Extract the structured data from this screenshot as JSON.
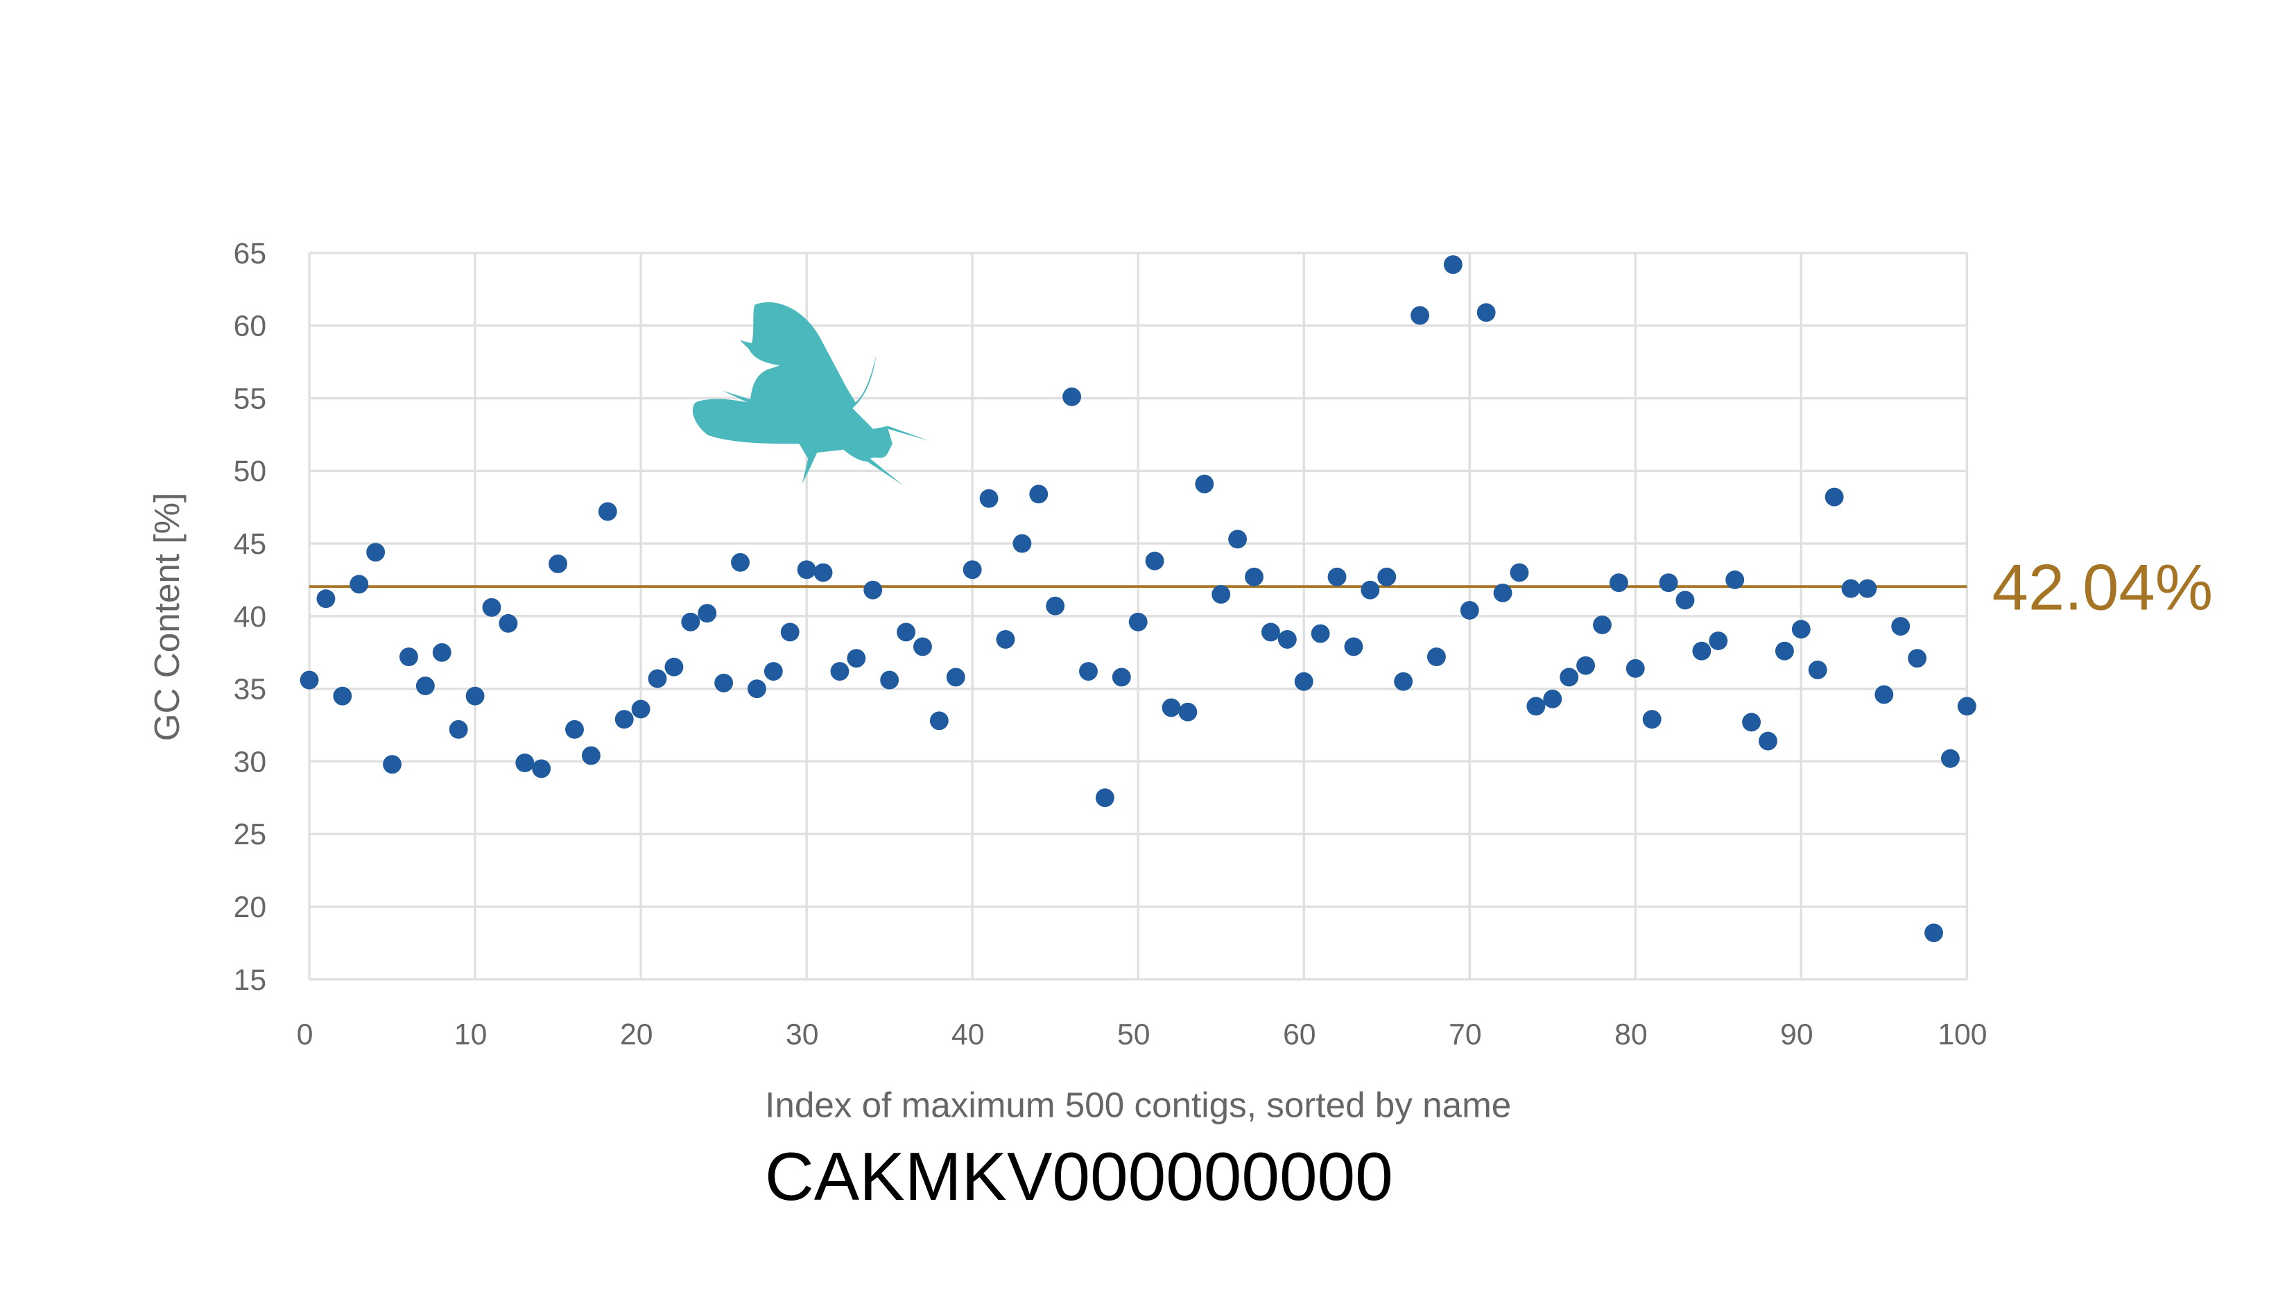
{
  "chart_data": {
    "type": "scatter",
    "title": "CAKMKV000000000",
    "xlabel": "Index of maximum 500 contigs, sorted by name",
    "ylabel": "GC Content [%]",
    "xlim": [
      0,
      100
    ],
    "ylim": [
      15,
      65
    ],
    "grid": true,
    "x_ticks": [
      "0",
      "10",
      "20",
      "30",
      "40",
      "50",
      "60",
      "70",
      "80",
      "90",
      "100"
    ],
    "y_ticks": [
      "15",
      "20",
      "25",
      "30",
      "35",
      "40",
      "45",
      "50",
      "55",
      "60",
      "65"
    ],
    "point_color": "#1f5b9e",
    "reference_line": {
      "value": 42.04,
      "label": "42.04%",
      "color": "#a57424"
    },
    "icon": "fly-silhouette-icon",
    "icon_color": "#4ab8bc",
    "x": [
      0,
      1,
      2,
      3,
      4,
      5,
      6,
      7,
      8,
      9,
      10,
      11,
      12,
      13,
      14,
      15,
      16,
      17,
      18,
      19,
      20,
      21,
      22,
      23,
      24,
      25,
      26,
      27,
      28,
      29,
      30,
      31,
      32,
      33,
      34,
      35,
      36,
      37,
      38,
      39,
      40,
      41,
      42,
      43,
      44,
      45,
      46,
      47,
      48,
      49,
      50,
      51,
      52,
      53,
      54,
      55,
      56,
      57,
      58,
      59,
      60,
      61,
      62,
      63,
      64,
      65,
      66,
      67,
      68,
      69,
      70,
      71,
      72,
      73,
      74,
      75,
      76,
      77,
      78,
      79,
      80,
      81,
      82,
      83,
      84,
      85,
      86,
      87,
      88,
      89,
      90,
      91,
      92,
      93,
      94,
      95,
      96,
      97,
      98,
      99,
      100
    ],
    "y": [
      35.6,
      41.2,
      34.5,
      42.2,
      44.4,
      29.8,
      37.2,
      35.2,
      37.5,
      32.2,
      34.5,
      40.6,
      39.5,
      29.9,
      29.5,
      43.6,
      32.2,
      30.4,
      47.2,
      32.9,
      33.6,
      35.7,
      36.5,
      39.6,
      40.2,
      35.4,
      43.7,
      35.0,
      36.2,
      38.9,
      43.2,
      43.0,
      36.2,
      37.1,
      41.8,
      35.6,
      38.9,
      37.9,
      32.8,
      35.8,
      43.2,
      48.1,
      38.4,
      45.0,
      48.4,
      40.7,
      55.1,
      36.2,
      27.5,
      35.8,
      39.6,
      43.8,
      33.7,
      33.4,
      49.1,
      41.5,
      45.3,
      42.7,
      38.9,
      38.4,
      35.5,
      38.8,
      42.7,
      37.9,
      41.8,
      42.7,
      35.5,
      60.7,
      37.2,
      64.2,
      40.4,
      60.9,
      41.6,
      43.0,
      33.8,
      34.3,
      35.8,
      36.6,
      39.4,
      42.3,
      36.4,
      32.9,
      42.3,
      41.1,
      37.6,
      38.3,
      42.5,
      32.7,
      31.4,
      37.6,
      39.1,
      36.3,
      48.2,
      41.9,
      41.9,
      34.6,
      39.3,
      37.1,
      18.2,
      30.2,
      33.8
    ]
  }
}
